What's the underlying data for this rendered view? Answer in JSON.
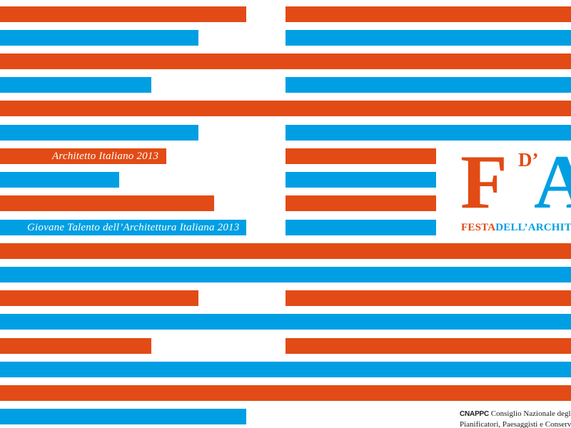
{
  "colors": {
    "orange": "#e24b15",
    "blue": "#009fe3",
    "background": "#ffffff",
    "text": "#1d1d1b"
  },
  "labels": {
    "award_architect": "Architetto Italiano 2013",
    "award_young_talent": "Giovane Talento dell’Architettura Italiana 2013"
  },
  "logo": {
    "letter_f": "F",
    "letter_d": "D’",
    "letter_a": "A",
    "subtitle_part1": "FESTA",
    "subtitle_part2": "DELL’ARCHITETTURA"
  },
  "footer": {
    "abbreviation": "CNAPPC",
    "line1": "Consiglio Nazionale degli Architetti,",
    "line2": "Pianificatori, Paesaggisti e Conservatori"
  }
}
